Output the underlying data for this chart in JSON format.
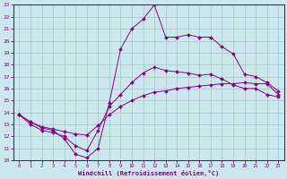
{
  "xlabel": "Windchill (Refroidissement éolien,°C)",
  "bg_color": "#cce8ee",
  "line_color": "#880088",
  "grid_color": "#aacccc",
  "xlim": [
    -0.5,
    23.5
  ],
  "ylim": [
    10,
    23
  ],
  "xticks": [
    0,
    1,
    2,
    3,
    4,
    5,
    6,
    7,
    8,
    9,
    10,
    11,
    12,
    13,
    14,
    15,
    16,
    17,
    18,
    19,
    20,
    21,
    22,
    23
  ],
  "yticks": [
    10,
    11,
    12,
    13,
    14,
    15,
    16,
    17,
    18,
    19,
    20,
    21,
    22,
    23
  ],
  "line1_x": [
    0,
    1,
    2,
    3,
    4,
    5,
    6,
    7,
    8,
    9,
    10,
    11,
    12,
    13,
    14,
    15,
    16,
    17,
    18,
    19,
    20,
    21,
    22,
    23
  ],
  "line1_y": [
    13.8,
    13.2,
    12.7,
    12.5,
    11.8,
    10.5,
    10.2,
    11.0,
    14.8,
    19.3,
    21.0,
    21.8,
    23.0,
    20.3,
    20.3,
    20.5,
    20.3,
    20.3,
    19.5,
    18.9,
    17.2,
    17.0,
    16.5,
    15.8
  ],
  "line2_x": [
    0,
    1,
    2,
    3,
    4,
    5,
    6,
    7,
    8,
    9,
    10,
    11,
    12,
    13,
    14,
    15,
    16,
    17,
    18,
    19,
    20,
    21,
    22,
    23
  ],
  "line2_y": [
    13.8,
    13.0,
    12.5,
    12.3,
    12.0,
    11.2,
    10.8,
    12.5,
    14.5,
    15.5,
    16.5,
    17.3,
    17.8,
    17.5,
    17.4,
    17.3,
    17.1,
    17.2,
    16.8,
    16.3,
    16.0,
    16.0,
    15.5,
    15.3
  ],
  "line3_x": [
    0,
    1,
    2,
    3,
    4,
    5,
    6,
    7,
    8,
    9,
    10,
    11,
    12,
    13,
    14,
    15,
    16,
    17,
    18,
    19,
    20,
    21,
    22,
    23
  ],
  "line3_y": [
    13.8,
    13.2,
    12.8,
    12.6,
    12.4,
    12.2,
    12.1,
    12.9,
    13.8,
    14.5,
    15.0,
    15.4,
    15.7,
    15.8,
    16.0,
    16.1,
    16.2,
    16.3,
    16.4,
    16.4,
    16.5,
    16.4,
    16.4,
    15.5
  ]
}
